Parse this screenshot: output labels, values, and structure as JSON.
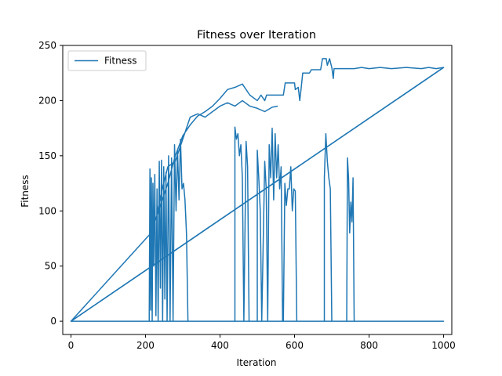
{
  "chart_data": {
    "type": "line",
    "title": "Fitness over Iteration",
    "xlabel": "Iteration",
    "ylabel": "Fitness",
    "xlim": [
      -22,
      1022
    ],
    "ylim": [
      -12,
      250
    ],
    "xticks": [
      0,
      200,
      400,
      600,
      800,
      1000
    ],
    "yticks": [
      0,
      50,
      100,
      150,
      200,
      250
    ],
    "grid": false,
    "legend_position": "top-left",
    "series_color": "#1f77b4",
    "series": [
      {
        "name": "Fitness",
        "points": [
          [
            0,
            0
          ],
          [
            210,
            0
          ],
          [
            212,
            138
          ],
          [
            214,
            10
          ],
          [
            216,
            130
          ],
          [
            218,
            0
          ],
          [
            220,
            125
          ],
          [
            222,
            50
          ],
          [
            225,
            133
          ],
          [
            228,
            5
          ],
          [
            231,
            120
          ],
          [
            234,
            0
          ],
          [
            237,
            145
          ],
          [
            240,
            30
          ],
          [
            243,
            146
          ],
          [
            246,
            0
          ],
          [
            249,
            140
          ],
          [
            252,
            20
          ],
          [
            255,
            135
          ],
          [
            258,
            0
          ],
          [
            262,
            150
          ],
          [
            266,
            0
          ],
          [
            270,
            148
          ],
          [
            274,
            0
          ],
          [
            278,
            160
          ],
          [
            282,
            100
          ],
          [
            286,
            155
          ],
          [
            290,
            110
          ],
          [
            294,
            165
          ],
          [
            298,
            120
          ],
          [
            302,
            125
          ],
          [
            306,
            110
          ],
          [
            310,
            80
          ],
          [
            314,
            0
          ],
          [
            440,
            0
          ],
          [
            440,
            176
          ],
          [
            444,
            165
          ],
          [
            448,
            170
          ],
          [
            452,
            150
          ],
          [
            456,
            160
          ],
          [
            460,
            130
          ],
          [
            464,
            0
          ],
          [
            470,
            163
          ],
          [
            474,
            140
          ],
          [
            478,
            0
          ],
          [
            500,
            0
          ],
          [
            500,
            155
          ],
          [
            504,
            130
          ],
          [
            508,
            100
          ],
          [
            512,
            0
          ],
          [
            520,
            145
          ],
          [
            524,
            120
          ],
          [
            528,
            0
          ],
          [
            532,
            160
          ],
          [
            536,
            130
          ],
          [
            540,
            175
          ],
          [
            544,
            110
          ],
          [
            548,
            170
          ],
          [
            552,
            130
          ],
          [
            556,
            160
          ],
          [
            560,
            120
          ],
          [
            564,
            140
          ],
          [
            568,
            0
          ],
          [
            570,
            0
          ],
          [
            574,
            125
          ],
          [
            578,
            105
          ],
          [
            582,
            120
          ],
          [
            586,
            120
          ],
          [
            590,
            140
          ],
          [
            594,
            100
          ],
          [
            598,
            120
          ],
          [
            602,
            118
          ],
          [
            606,
            0
          ],
          [
            680,
            0
          ],
          [
            680,
            130
          ],
          [
            684,
            170
          ],
          [
            688,
            145
          ],
          [
            692,
            130
          ],
          [
            696,
            120
          ],
          [
            700,
            0
          ],
          [
            740,
            0
          ],
          [
            742,
            148
          ],
          [
            745,
            130
          ],
          [
            748,
            80
          ],
          [
            751,
            108
          ],
          [
            754,
            90
          ],
          [
            757,
            130
          ],
          [
            760,
            0
          ],
          [
            1000,
            0
          ],
          [
            0,
            0
          ],
          [
            215,
            80
          ],
          [
            240,
            105
          ],
          [
            260,
            125
          ],
          [
            280,
            150
          ],
          [
            300,
            168
          ],
          [
            320,
            178
          ],
          [
            340,
            186
          ],
          [
            360,
            190
          ],
          [
            380,
            195
          ],
          [
            400,
            202
          ],
          [
            420,
            210
          ],
          [
            440,
            212
          ],
          [
            460,
            215
          ],
          [
            480,
            205
          ],
          [
            500,
            200
          ],
          [
            510,
            205
          ],
          [
            520,
            200
          ],
          [
            525,
            205
          ],
          [
            540,
            205
          ],
          [
            560,
            205
          ],
          [
            570,
            205
          ],
          [
            575,
            216
          ],
          [
            600,
            216
          ],
          [
            602,
            210
          ],
          [
            610,
            212
          ],
          [
            614,
            200
          ],
          [
            618,
            212
          ],
          [
            622,
            225
          ],
          [
            640,
            225
          ],
          [
            645,
            228
          ],
          [
            670,
            228
          ],
          [
            675,
            238
          ],
          [
            685,
            238
          ],
          [
            688,
            232
          ],
          [
            694,
            238
          ],
          [
            700,
            230
          ],
          [
            704,
            220
          ],
          [
            706,
            229
          ],
          [
            760,
            229
          ],
          [
            780,
            230
          ],
          [
            800,
            229
          ],
          [
            830,
            230
          ],
          [
            860,
            229
          ],
          [
            900,
            230
          ],
          [
            940,
            229
          ],
          [
            960,
            230
          ],
          [
            980,
            229
          ],
          [
            1000,
            230
          ],
          [
            0,
            0
          ],
          [
            215,
            80
          ],
          [
            230,
            95
          ],
          [
            245,
            120
          ],
          [
            260,
            140
          ],
          [
            280,
            145
          ],
          [
            300,
            165
          ],
          [
            320,
            185
          ],
          [
            340,
            188
          ],
          [
            360,
            185
          ],
          [
            380,
            190
          ],
          [
            400,
            195
          ],
          [
            420,
            198
          ],
          [
            440,
            195
          ],
          [
            460,
            200
          ],
          [
            480,
            195
          ],
          [
            500,
            193
          ],
          [
            520,
            190
          ],
          [
            540,
            194
          ],
          [
            555,
            195
          ]
        ]
      }
    ],
    "extra_line": {
      "points": [
        [
          0,
          0
        ],
        [
          1000,
          230
        ]
      ]
    }
  }
}
